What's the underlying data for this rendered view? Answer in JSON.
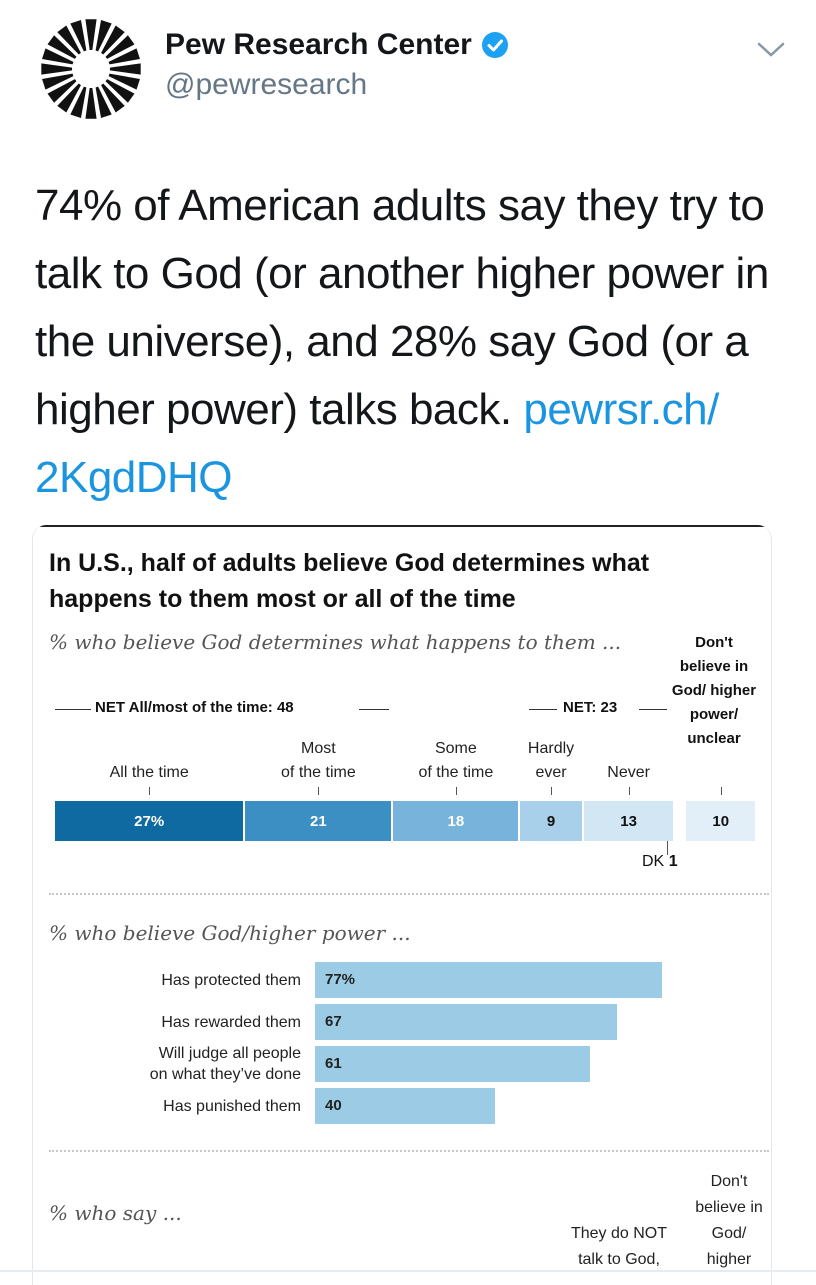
{
  "tweet": {
    "account_name": "Pew Research Center",
    "handle": "@pewresearch",
    "text": "74% of American adults say they try to talk to God (or another higher power in the universe), and 28% say God (or a higher power) talks back.",
    "link_text": "pewrsr.ch/ 2KgdDHQ",
    "verified_icon": "verified-badge-icon",
    "menu_icon": "chevron-down-icon",
    "link_color": "#1b95e0"
  },
  "graphic": {
    "title": "In U.S., half of adults believe God determines what happens to them most or all of the time",
    "subtitle1": "% who believe God determines what happens to them ...",
    "dont_believe_label": "Don't believe in God/ higher power/ unclear",
    "net_all_most": "NET All/most of the time: 48",
    "net_hardly_never": "NET: 23",
    "dk_label": "DK",
    "dk_value": "1",
    "subtitle2": "% who believe God/higher power ...",
    "subtitle3": "% who say ...",
    "bottom_col1": "They do NOT talk to God,",
    "bottom_col2": "Don't believe in God/ higher"
  },
  "chart_data": [
    {
      "type": "bar",
      "stacked": true,
      "orientation": "horizontal",
      "categories": [
        "All the time",
        "Most of the time",
        "Some of the time",
        "Hardly ever",
        "Never",
        "Don't believe in God/ higher power/ unclear"
      ],
      "values": [
        27,
        21,
        18,
        9,
        13,
        10
      ],
      "labels": [
        "27%",
        "21",
        "18",
        "9",
        "13",
        "10"
      ],
      "colors": [
        "#0e6aa0",
        "#3c8fc2",
        "#77b3da",
        "#a9d0ea",
        "#d2e6f4",
        "#e3eff8"
      ]
    },
    {
      "type": "bar",
      "orientation": "horizontal",
      "categories": [
        "Has protected them",
        "Has rewarded them",
        "Will judge all people on what they've done",
        "Has punished them"
      ],
      "values": [
        77,
        67,
        61,
        40
      ],
      "labels": [
        "77%",
        "67",
        "61",
        "40"
      ],
      "xlim": [
        0,
        100
      ],
      "color": "#9ccbe5"
    }
  ]
}
